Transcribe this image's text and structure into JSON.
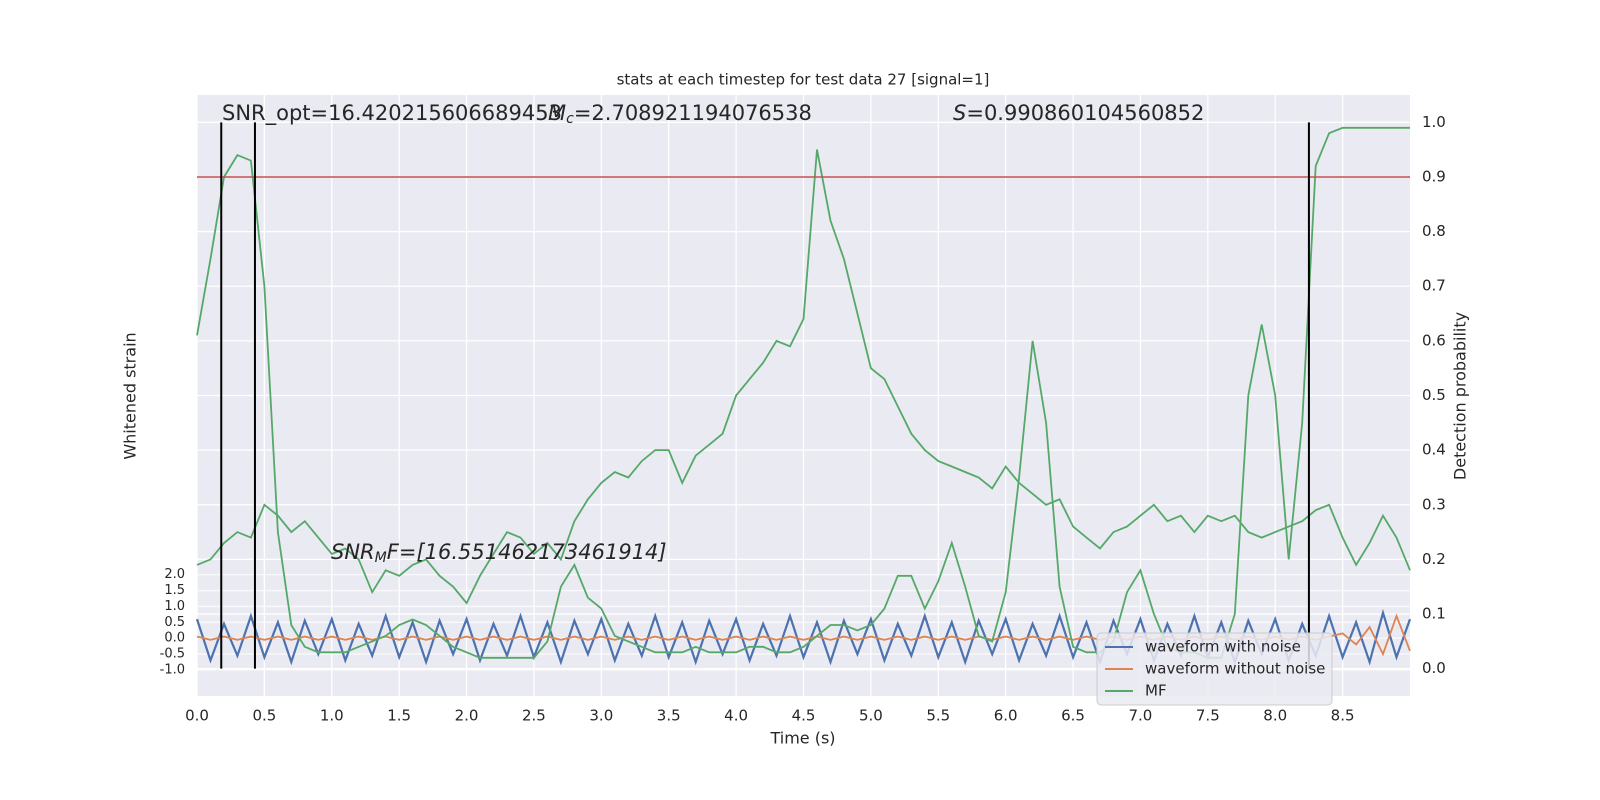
{
  "chart_data": {
    "type": "line",
    "title": "stats at each timestep for test data 27 [signal=1]",
    "xlabel": "Time (s)",
    "ylabel": "Whitened strain",
    "y2label": "Detection probability",
    "annotations": [
      {
        "text": "SNR_opt=16.420215606689453"
      },
      {
        "symbol": "M",
        "subscript": "c",
        "text": "=2.708921194076538"
      },
      {
        "symbol": "S",
        "text": "=0.990860104560852"
      },
      {
        "symbol": "SNR",
        "subscript": "M",
        "text": "F=[16.551462173461914]"
      }
    ],
    "x": [
      0,
      0.1,
      0.2,
      0.3,
      0.4,
      0.5,
      0.6,
      0.7,
      0.8,
      0.9,
      1,
      1.1,
      1.2,
      1.3,
      1.4,
      1.5,
      1.6,
      1.7,
      1.8,
      1.9,
      2,
      2.1,
      2.2,
      2.3,
      2.4,
      2.5,
      2.6,
      2.7,
      2.8,
      2.9,
      3,
      3.1,
      3.2,
      3.3,
      3.4,
      3.5,
      3.6,
      3.7,
      3.8,
      3.9,
      4,
      4.1,
      4.2,
      4.3,
      4.4,
      4.5,
      4.6,
      4.7,
      4.8,
      4.9,
      5,
      5.1,
      5.2,
      5.3,
      5.4,
      5.5,
      5.6,
      5.7,
      5.8,
      5.9,
      6,
      6.1,
      6.2,
      6.3,
      6.4,
      6.5,
      6.6,
      6.7,
      6.8,
      6.9,
      7,
      7.1,
      7.2,
      7.3,
      7.4,
      7.5,
      7.6,
      7.7,
      7.8,
      7.9,
      8,
      8.1,
      8.2,
      8.3,
      8.4,
      8.5,
      8.6,
      8.7,
      8.8,
      8.9,
      9
    ],
    "series": [
      {
        "name": "waveform with noise",
        "color": "#4c72b0",
        "axis": "y",
        "values": [
          0.6,
          -0.7,
          0.45,
          -0.55,
          0.7,
          -0.6,
          0.5,
          -0.75,
          0.55,
          -0.5,
          0.6,
          -0.7,
          0.45,
          -0.55,
          0.7,
          -0.6,
          0.5,
          -0.75,
          0.55,
          -0.5,
          0.6,
          -0.7,
          0.45,
          -0.55,
          0.7,
          -0.6,
          0.5,
          -0.75,
          0.55,
          -0.5,
          0.6,
          -0.7,
          0.45,
          -0.55,
          0.7,
          -0.6,
          0.5,
          -0.75,
          0.55,
          -0.5,
          0.6,
          -0.7,
          0.45,
          -0.55,
          0.7,
          -0.6,
          0.5,
          -0.75,
          0.55,
          -0.5,
          0.6,
          -0.7,
          0.45,
          -0.55,
          0.7,
          -0.6,
          0.5,
          -0.75,
          0.55,
          -0.5,
          0.6,
          -0.7,
          0.45,
          -0.55,
          0.7,
          -0.6,
          0.5,
          -0.75,
          0.55,
          -0.5,
          0.6,
          -0.7,
          0.45,
          -0.55,
          0.7,
          -0.6,
          0.5,
          -0.75,
          0.55,
          -0.5,
          0.6,
          -0.7,
          0.45,
          -0.55,
          0.7,
          -0.6,
          0.5,
          -0.75,
          0.8,
          -0.6,
          0.6
        ]
      },
      {
        "name": "waveform without noise",
        "color": "#dd8452",
        "axis": "y",
        "values": [
          0.05,
          -0.05,
          0.05,
          -0.05,
          0.05,
          -0.05,
          0.05,
          -0.05,
          0.05,
          -0.05,
          0.05,
          -0.05,
          0.05,
          -0.05,
          0.05,
          -0.05,
          0.05,
          -0.05,
          0.05,
          -0.05,
          0.05,
          -0.05,
          0.05,
          -0.05,
          0.05,
          -0.05,
          0.05,
          -0.05,
          0.05,
          -0.05,
          0.05,
          -0.05,
          0.05,
          -0.05,
          0.05,
          -0.05,
          0.05,
          -0.05,
          0.05,
          -0.05,
          0.05,
          -0.05,
          0.05,
          -0.05,
          0.05,
          -0.05,
          0.05,
          -0.05,
          0.05,
          -0.05,
          0.05,
          -0.05,
          0.05,
          -0.05,
          0.05,
          -0.05,
          0.05,
          -0.05,
          0.05,
          -0.05,
          0.05,
          -0.05,
          0.05,
          -0.05,
          0.05,
          -0.05,
          0.05,
          -0.05,
          0.05,
          -0.05,
          0.05,
          -0.05,
          0.05,
          -0.05,
          0.05,
          -0.05,
          0.05,
          -0.05,
          0.05,
          -0.05,
          0.05,
          -0.05,
          0.05,
          -0.05,
          0.05,
          0.15,
          -0.2,
          0.35,
          -0.5,
          0.7,
          -0.4
        ]
      },
      {
        "name": "MF",
        "color": "#55a868",
        "axis": "y2",
        "values": [
          0.19,
          0.2,
          0.23,
          0.25,
          0.24,
          0.3,
          0.28,
          0.25,
          0.27,
          0.24,
          0.21,
          0.22,
          0.2,
          0.14,
          0.18,
          0.17,
          0.19,
          0.2,
          0.17,
          0.15,
          0.12,
          0.17,
          0.21,
          0.25,
          0.24,
          0.21,
          0.23,
          0.2,
          0.27,
          0.31,
          0.34,
          0.36,
          0.35,
          0.38,
          0.4,
          0.4,
          0.34,
          0.39,
          0.41,
          0.43,
          0.5,
          0.53,
          0.56,
          0.6,
          0.59,
          0.64,
          0.95,
          0.82,
          0.75,
          0.65,
          0.55,
          0.53,
          0.48,
          0.43,
          0.4,
          0.38,
          0.37,
          0.36,
          0.35,
          0.33,
          0.37,
          0.34,
          0.32,
          0.3,
          0.31,
          0.26,
          0.24,
          0.22,
          0.25,
          0.26,
          0.28,
          0.3,
          0.27,
          0.28,
          0.25,
          0.28,
          0.27,
          0.28,
          0.25,
          0.24,
          0.25,
          0.26,
          0.27,
          0.29,
          0.3,
          0.24,
          0.19,
          0.23,
          0.28,
          0.24,
          0.18
        ]
      },
      {
        "color": "#55a868",
        "axis": "y2",
        "values": [
          0.61,
          0.75,
          0.9,
          0.94,
          0.93,
          0.7,
          0.25,
          0.08,
          0.04,
          0.03,
          0.03,
          0.03,
          0.04,
          0.05,
          0.06,
          0.08,
          0.09,
          0.08,
          0.06,
          0.04,
          0.03,
          0.02,
          0.02,
          0.02,
          0.02,
          0.02,
          0.05,
          0.15,
          0.19,
          0.13,
          0.11,
          0.06,
          0.05,
          0.04,
          0.03,
          0.03,
          0.03,
          0.04,
          0.03,
          0.03,
          0.03,
          0.04,
          0.04,
          0.03,
          0.03,
          0.04,
          0.06,
          0.08,
          0.08,
          0.07,
          0.08,
          0.11,
          0.17,
          0.17,
          0.11,
          0.16,
          0.23,
          0.15,
          0.06,
          0.05,
          0.14,
          0.35,
          0.6,
          0.45,
          0.15,
          0.04,
          0.03,
          0.03,
          0.05,
          0.14,
          0.18,
          0.1,
          0.04,
          0.03,
          0.03,
          0.02,
          0.02,
          0.1,
          0.5,
          0.63,
          0.5,
          0.2,
          0.45,
          0.92,
          0.98,
          0.99,
          0.99,
          0.99,
          0.99,
          0.99,
          0.99
        ]
      }
    ],
    "vlines": [
      0.18,
      0.43,
      8.25
    ],
    "vline_color": "#000000",
    "hline": 0.9,
    "hline_color": "#c44e52",
    "xlim": [
      0,
      9
    ],
    "xticks": [
      {
        "value": 0,
        "label": "0.0"
      },
      {
        "value": 0.5,
        "label": "0.5"
      },
      {
        "value": 1,
        "label": "1.0"
      },
      {
        "value": 1.5,
        "label": "1.5"
      },
      {
        "value": 2,
        "label": "2.0"
      },
      {
        "value": 2.5,
        "label": "2.5"
      },
      {
        "value": 3,
        "label": "3.0"
      },
      {
        "value": 3.5,
        "label": "3.5"
      },
      {
        "value": 4,
        "label": "4.0"
      },
      {
        "value": 4.5,
        "label": "4.5"
      },
      {
        "value": 5,
        "label": "5.0"
      },
      {
        "value": 5.5,
        "label": "5.5"
      },
      {
        "value": 6,
        "label": "6.0"
      },
      {
        "value": 6.5,
        "label": "6.5"
      },
      {
        "value": 7,
        "label": "7.0"
      },
      {
        "value": 7.5,
        "label": "7.5"
      },
      {
        "value": 8,
        "label": "8.0"
      },
      {
        "value": 8.5,
        "label": "8.5"
      }
    ],
    "ylim": [
      -1.82,
      17.1
    ],
    "yticks": [
      {
        "value": -1,
        "label": "-1.0"
      },
      {
        "value": -0.5,
        "label": "-0.5"
      },
      {
        "value": 0,
        "label": "0.0"
      },
      {
        "value": 0.5,
        "label": "0.5"
      },
      {
        "value": 1,
        "label": "1.0"
      },
      {
        "value": 1.5,
        "label": "1.5"
      },
      {
        "value": 2,
        "label": "2.0"
      }
    ],
    "y2lim": [
      -0.05,
      1.05
    ],
    "y2ticks": [
      {
        "value": 0,
        "label": "0.0"
      },
      {
        "value": 0.1,
        "label": "0.1"
      },
      {
        "value": 0.2,
        "label": "0.2"
      },
      {
        "value": 0.3,
        "label": "0.3"
      },
      {
        "value": 0.4,
        "label": "0.4"
      },
      {
        "value": 0.5,
        "label": "0.5"
      },
      {
        "value": 0.6,
        "label": "0.6"
      },
      {
        "value": 0.7,
        "label": "0.7"
      },
      {
        "value": 0.8,
        "label": "0.8"
      },
      {
        "value": 0.9,
        "label": "0.9"
      },
      {
        "value": 1,
        "label": "1.0"
      }
    ],
    "grid": true,
    "legend": "lower right"
  }
}
